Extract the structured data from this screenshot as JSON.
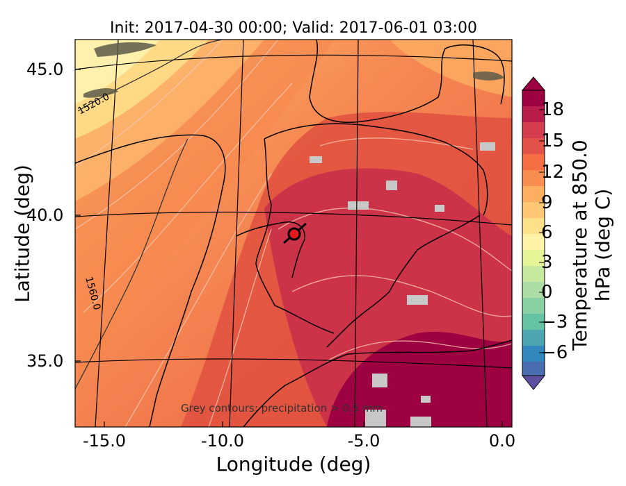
{
  "title": "Init: 2017-04-30 00:00; Valid: 2017-06-01 03:00",
  "axes": {
    "xlabel": "Longitude (deg)",
    "ylabel": "Latitude (deg)",
    "x_ticks": [
      "-15.0",
      "-10.0",
      "-5.0",
      "0.0"
    ],
    "y_ticks": [
      "45.0",
      "40.0",
      "35.0"
    ]
  },
  "colorbar": {
    "label": "Temperature at 850.0 hPa (deg C)",
    "ticks": [
      "18",
      "15",
      "12",
      "9",
      "6",
      "3",
      "0",
      "−6"
    ],
    "neg3_label": "−3",
    "colors": [
      "#5e4fa2",
      "#3288bd",
      "#66c2a5",
      "#abdda4",
      "#e6f598",
      "#fee08b",
      "#fdae61",
      "#f46d43",
      "#d53e4f",
      "#9e0142"
    ]
  },
  "contour_labels": [
    "1520.0",
    "1560.0"
  ],
  "annotation": "Grey contours: precipitation > 0.5 mm",
  "marker": {
    "name": "station-marker",
    "color": "#e41a1c"
  }
}
